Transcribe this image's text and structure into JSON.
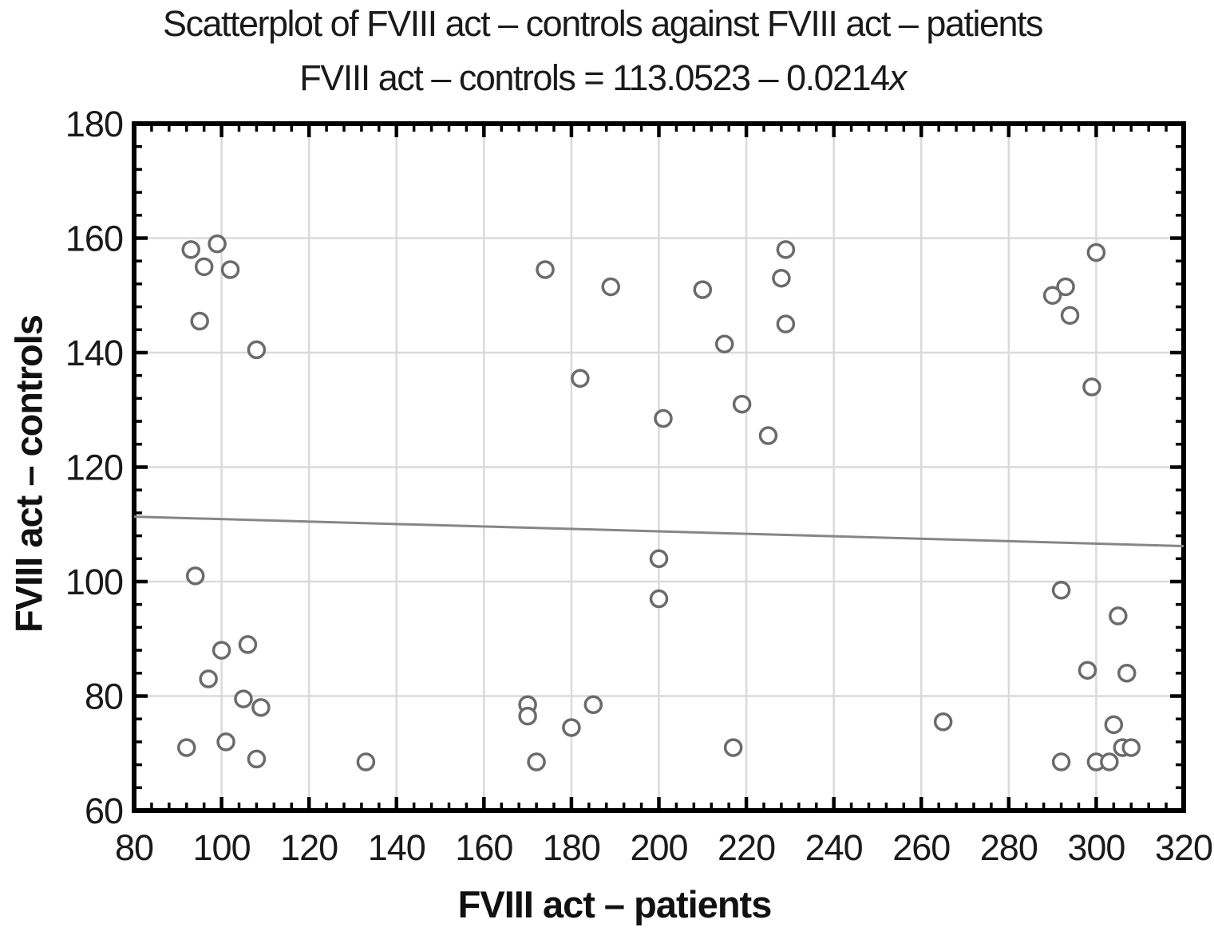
{
  "chart_data": {
    "type": "scatter",
    "title": "Scatterplot of FVIII act – controls against FVIII act – patients",
    "subtitle_equation": {
      "prefix": "FVIII act – controls = 113.0523 – 0.0214",
      "variable": "x"
    },
    "equation_full": "FVIII act – controls = 113.0523 – 0.0214x",
    "xlabel": "FVIII act – patients",
    "ylabel": "FVIII act – controls",
    "xlim": [
      80,
      320
    ],
    "ylim": [
      60,
      180
    ],
    "x_ticks": [
      80,
      100,
      120,
      140,
      160,
      180,
      200,
      220,
      240,
      260,
      280,
      300,
      320
    ],
    "y_ticks": [
      60,
      80,
      100,
      120,
      140,
      160,
      180
    ],
    "minor_tick_step": 4,
    "major_tick_step": 20,
    "grid": true,
    "legend_position": "none",
    "trend_line": {
      "name": "regression-line",
      "intercept": 113.0523,
      "slope": -0.0214,
      "x_start": 80,
      "x_end": 320
    },
    "series_name": "FVIII act",
    "points": [
      [
        93,
        158
      ],
      [
        99,
        159
      ],
      [
        96,
        155
      ],
      [
        102,
        154.5
      ],
      [
        95,
        145.5
      ],
      [
        108,
        140.5
      ],
      [
        94,
        101
      ],
      [
        100,
        88
      ],
      [
        106,
        89
      ],
      [
        97,
        83
      ],
      [
        105,
        79.5
      ],
      [
        109,
        78
      ],
      [
        92,
        71
      ],
      [
        101,
        72
      ],
      [
        108,
        69
      ],
      [
        133,
        68.5
      ],
      [
        174,
        154.5
      ],
      [
        189,
        151.5
      ],
      [
        210,
        151
      ],
      [
        229,
        158
      ],
      [
        228,
        153
      ],
      [
        229,
        145
      ],
      [
        215,
        141.5
      ],
      [
        182,
        135.5
      ],
      [
        201,
        128.5
      ],
      [
        219,
        131
      ],
      [
        225,
        125.5
      ],
      [
        200,
        104
      ],
      [
        200,
        97
      ],
      [
        170,
        78.5
      ],
      [
        170,
        76.5
      ],
      [
        185,
        78.5
      ],
      [
        180,
        74.5
      ],
      [
        217,
        71
      ],
      [
        172,
        68.5
      ],
      [
        265,
        75.5
      ],
      [
        300,
        157.5
      ],
      [
        293,
        151.5
      ],
      [
        290,
        150
      ],
      [
        294,
        146.5
      ],
      [
        299,
        134
      ],
      [
        292,
        98.5
      ],
      [
        305,
        94
      ],
      [
        298,
        84.5
      ],
      [
        307,
        84
      ],
      [
        304,
        75
      ],
      [
        306,
        71
      ],
      [
        308,
        71
      ],
      [
        300,
        68.5
      ],
      [
        303,
        68.5
      ],
      [
        292,
        68.5
      ]
    ],
    "colors": {
      "point_stroke": "#6b6b6b",
      "point_fill": "#ffffff",
      "trend_line": "#868686",
      "grid": "#dadada",
      "axis": "#000000",
      "text": "#1a1a1a"
    }
  }
}
